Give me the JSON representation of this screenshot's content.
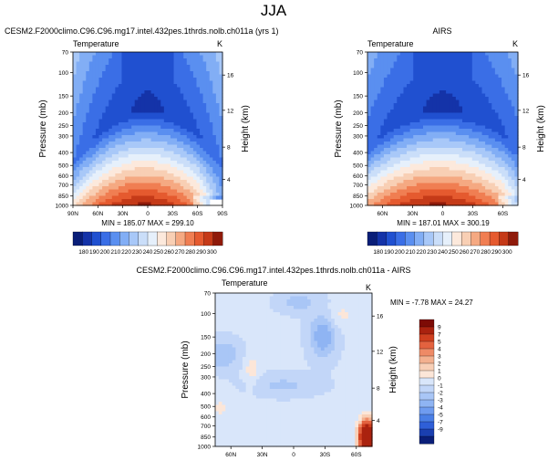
{
  "figure": {
    "title": "JJA"
  },
  "colors": {
    "abs_palette": [
      "#0a1e78",
      "#1433a8",
      "#2050d0",
      "#3a6ee6",
      "#5a8ff0",
      "#82aef5",
      "#a8c8f8",
      "#cadef9",
      "#e6f0fb",
      "#fce9dc",
      "#f8cfb4",
      "#f5a982",
      "#f07e52",
      "#e55a2f",
      "#c53a18",
      "#8f1a0a"
    ],
    "diff_palette": [
      "#0a1e78",
      "#1a3fb0",
      "#2f5fd8",
      "#4a7fe6",
      "#6f9cf0",
      "#8fb4f3",
      "#a9c6f6",
      "#c2d6f8",
      "#d9e6fa",
      "#fce6d8",
      "#f8cfb6",
      "#f3b08f",
      "#ee8a66",
      "#e3623f",
      "#cf3f1f",
      "#aa220f",
      "#7d0b05"
    ]
  },
  "chart_data": [
    {
      "type": "heatmap",
      "title": "CESM2.F2000climo.C96.C96.mg17.intel.432pes.1thrds.nolb.ch011a (yrs 1)",
      "left_label": "Temperature",
      "right_label": "K",
      "xlabel": "",
      "ylabel": "Pressure (mb)",
      "ylabel_right": "Height (km)",
      "x_ticks": [
        "90N",
        "60N",
        "30N",
        "0",
        "30S",
        "60S",
        "90S"
      ],
      "x_range": [
        90,
        -90
      ],
      "y_ticks": [
        "70",
        "100",
        "150",
        "200",
        "250",
        "300",
        "400",
        "500",
        "600",
        "700",
        "850",
        "1000"
      ],
      "y_range_mb": [
        70,
        1000
      ],
      "height_ticks": [
        "16",
        "12",
        "8",
        "4"
      ],
      "stats": "MIN = 185.07  MAX = 299.10",
      "min": 185.07,
      "max": 299.1,
      "colorbar_labels": [
        "180",
        "190",
        "200",
        "210",
        "220",
        "230",
        "240",
        "250",
        "260",
        "270",
        "280",
        "290",
        "300"
      ]
    },
    {
      "type": "heatmap",
      "title": "AIRS",
      "left_label": "Temperature",
      "right_label": "K",
      "xlabel": "",
      "ylabel": "Pressure (mb)",
      "ylabel_right": "Height (km)",
      "x_ticks": [
        "60N",
        "30N",
        "0",
        "30S",
        "60S"
      ],
      "x_range": [
        75,
        -75
      ],
      "y_ticks": [
        "70",
        "100",
        "150",
        "200",
        "250",
        "300",
        "400",
        "500",
        "600",
        "700",
        "850",
        "1000"
      ],
      "y_range_mb": [
        70,
        1000
      ],
      "height_ticks": [
        "16",
        "12",
        "8",
        "4"
      ],
      "stats": "MIN = 187.01  MAX = 300.19",
      "min": 187.01,
      "max": 300.19,
      "colorbar_labels": [
        "180",
        "190",
        "200",
        "210",
        "220",
        "230",
        "240",
        "250",
        "260",
        "270",
        "280",
        "290",
        "300"
      ]
    },
    {
      "type": "heatmap",
      "title": "CESM2.F2000climo.C96.C96.mg17.intel.432pes.1thrds.nolb.ch011a - AIRS",
      "left_label": "Temperature",
      "right_label": "K",
      "xlabel": "",
      "ylabel": "Pressure (mb)",
      "ylabel_right": "Height (km)",
      "x_ticks": [
        "60N",
        "30N",
        "0",
        "30S",
        "60S"
      ],
      "x_range": [
        75,
        -75
      ],
      "y_ticks": [
        "70",
        "100",
        "150",
        "200",
        "250",
        "300",
        "400",
        "500",
        "600",
        "700",
        "850",
        "1000"
      ],
      "y_range_mb": [
        70,
        1000
      ],
      "height_ticks": [
        "16",
        "12",
        "8",
        "4"
      ],
      "stats": "MIN = -7.78  MAX = 24.27",
      "min": -7.78,
      "max": 24.27,
      "colorbar_labels": [
        "9",
        "7",
        "5",
        "4",
        "3",
        "2",
        "1",
        "0",
        "-1",
        "-2",
        "-3",
        "-4",
        "-5",
        "-7",
        "-9"
      ]
    }
  ]
}
